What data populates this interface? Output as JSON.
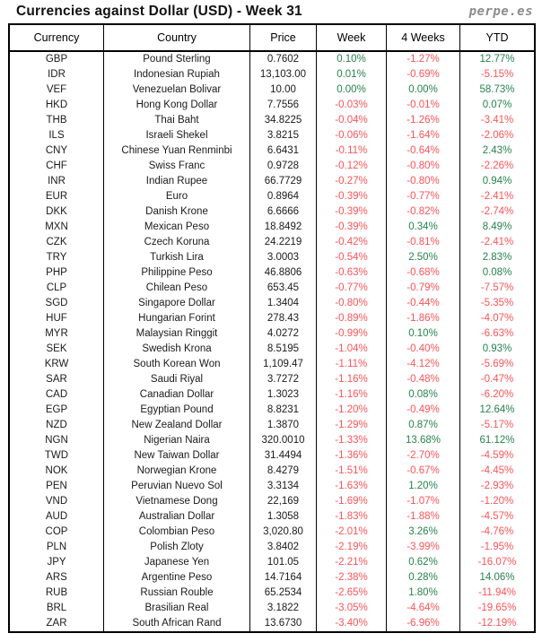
{
  "title": "Currencies against Dollar (USD) - Week 31",
  "brand": "perpe.es",
  "colors": {
    "positive_green": "#27824e",
    "negative_red": "#fb5458",
    "text_black": "#1a1a1a",
    "border_black": "#000000",
    "brand_gray": "#8c8c8c",
    "background": "#ffffff"
  },
  "chart_data": {
    "type": "table",
    "title": "Currencies against Dollar (USD) - Week 31",
    "source_label": "perpe.es",
    "columns": [
      "Currency",
      "Country",
      "Price",
      "Week",
      "4 Weeks",
      "YTD"
    ],
    "value_color_rule": "percent cells starting with '-' render red, otherwise green",
    "rows": [
      [
        "GBP",
        "Pound Sterling",
        "0.7602",
        "0.10%",
        "-1.27%",
        "12.77%"
      ],
      [
        "IDR",
        "Indonesian Rupiah",
        "13,103.00",
        "0.01%",
        "-0.69%",
        "-5.15%"
      ],
      [
        "VEF",
        "Venezuelan Bolivar",
        "10.00",
        "0.00%",
        "0.00%",
        "58.73%"
      ],
      [
        "HKD",
        "Hong Kong Dollar",
        "7.7556",
        "-0.03%",
        "-0.01%",
        "0.07%"
      ],
      [
        "THB",
        "Thai Baht",
        "34.8225",
        "-0.04%",
        "-1.26%",
        "-3.41%"
      ],
      [
        "ILS",
        "Israeli Shekel",
        "3.8215",
        "-0.06%",
        "-1.64%",
        "-2.06%"
      ],
      [
        "CNY",
        "Chinese Yuan Renminbi",
        "6.6431",
        "-0.11%",
        "-0.64%",
        "2.43%"
      ],
      [
        "CHF",
        "Swiss Franc",
        "0.9728",
        "-0.12%",
        "-0.80%",
        "-2.26%"
      ],
      [
        "INR",
        "Indian Rupee",
        "66.7729",
        "-0.27%",
        "-0.80%",
        "0.94%"
      ],
      [
        "EUR",
        "Euro",
        "0.8964",
        "-0.39%",
        "-0.77%",
        "-2.41%"
      ],
      [
        "DKK",
        "Danish Krone",
        "6.6666",
        "-0.39%",
        "-0.82%",
        "-2.74%"
      ],
      [
        "MXN",
        "Mexican Peso",
        "18.8492",
        "-0.39%",
        "0.34%",
        "8.49%"
      ],
      [
        "CZK",
        "Czech Koruna",
        "24.2219",
        "-0.42%",
        "-0.81%",
        "-2.41%"
      ],
      [
        "TRY",
        "Turkish Lira",
        "3.0003",
        "-0.54%",
        "2.50%",
        "2.83%"
      ],
      [
        "PHP",
        "Philippine Peso",
        "46.8806",
        "-0.63%",
        "-0.68%",
        "0.08%"
      ],
      [
        "CLP",
        "Chilean Peso",
        "653.45",
        "-0.77%",
        "-0.79%",
        "-7.57%"
      ],
      [
        "SGD",
        "Singapore Dollar",
        "1.3404",
        "-0.80%",
        "-0.44%",
        "-5.35%"
      ],
      [
        "HUF",
        "Hungarian Forint",
        "278.43",
        "-0.89%",
        "-1.86%",
        "-4.07%"
      ],
      [
        "MYR",
        "Malaysian Ringgit",
        "4.0272",
        "-0.99%",
        "0.10%",
        "-6.63%"
      ],
      [
        "SEK",
        "Swedish Krona",
        "8.5195",
        "-1.04%",
        "-0.40%",
        "0.93%"
      ],
      [
        "KRW",
        "South Korean Won",
        "1,109.47",
        "-1.11%",
        "-4.12%",
        "-5.69%"
      ],
      [
        "SAR",
        "Saudi Riyal",
        "3.7272",
        "-1.16%",
        "-0.48%",
        "-0.47%"
      ],
      [
        "CAD",
        "Canadian Dollar",
        "1.3023",
        "-1.16%",
        "0.08%",
        "-6.20%"
      ],
      [
        "EGP",
        "Egyptian Pound",
        "8.8231",
        "-1.20%",
        "-0.49%",
        "12.64%"
      ],
      [
        "NZD",
        "New Zealand Dollar",
        "1.3870",
        "-1.29%",
        "0.87%",
        "-5.17%"
      ],
      [
        "NGN",
        "Nigerian Naira",
        "320.0010",
        "-1.33%",
        "13.68%",
        "61.12%"
      ],
      [
        "TWD",
        "New Taiwan Dollar",
        "31.4494",
        "-1.36%",
        "-2.70%",
        "-4.59%"
      ],
      [
        "NOK",
        "Norwegian Krone",
        "8.4279",
        "-1.51%",
        "-0.67%",
        "-4.45%"
      ],
      [
        "PEN",
        "Peruvian Nuevo Sol",
        "3.3134",
        "-1.63%",
        "1.20%",
        "-2.93%"
      ],
      [
        "VND",
        "Vietnamese Dong",
        "22,169",
        "-1.69%",
        "-1.07%",
        "-1.20%"
      ],
      [
        "AUD",
        "Australian Dollar",
        "1.3058",
        "-1.83%",
        "-1.88%",
        "-4.57%"
      ],
      [
        "COP",
        "Colombian Peso",
        "3,020.80",
        "-2.01%",
        "3.26%",
        "-4.76%"
      ],
      [
        "PLN",
        "Polish Zloty",
        "3.8402",
        "-2.19%",
        "-3.99%",
        "-1.95%"
      ],
      [
        "JPY",
        "Japanese Yen",
        "101.05",
        "-2.21%",
        "0.62%",
        "-16.07%"
      ],
      [
        "ARS",
        "Argentine Peso",
        "14.7164",
        "-2.38%",
        "0.28%",
        "14.06%"
      ],
      [
        "RUB",
        "Russian Rouble",
        "65.2534",
        "-2.65%",
        "1.80%",
        "-11.94%"
      ],
      [
        "BRL",
        "Brasilian Real",
        "3.1822",
        "-3.05%",
        "-4.64%",
        "-19.65%"
      ],
      [
        "ZAR",
        "South African Rand",
        "13.6730",
        "-3.40%",
        "-6.96%",
        "-12.19%"
      ]
    ]
  }
}
